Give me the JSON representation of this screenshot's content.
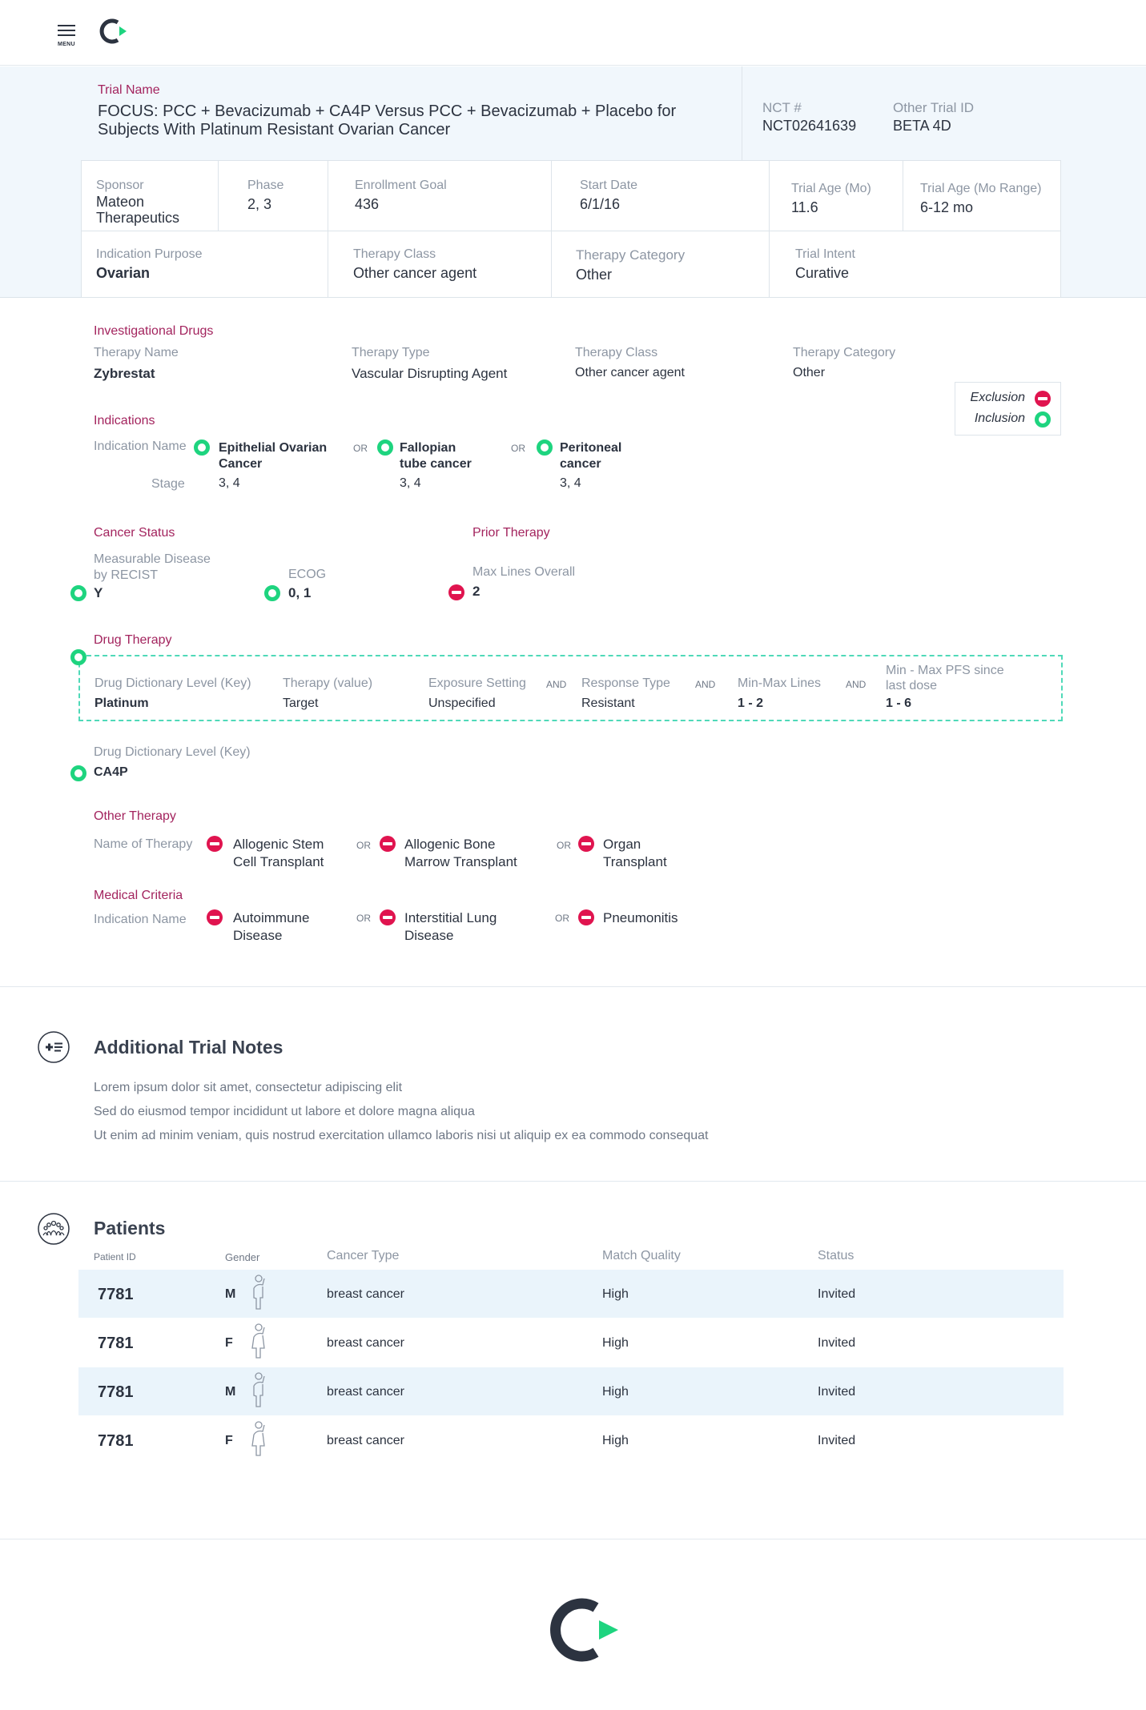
{
  "header": {
    "menu_label": "MENU"
  },
  "trial": {
    "name_label": "Trial Name",
    "name": "FOCUS: PCC + Bevacizumab + CA4P Versus PCC + Bevacizumab + Placebo for Subjects With Platinum Resistant Ovarian Cancer",
    "nct_label": "NCT #",
    "nct": "NCT02641639",
    "other_id_label": "Other Trial ID",
    "other_id": "BETA 4D",
    "sponsor_label": "Sponsor",
    "sponsor": "Mateon Therapeutics",
    "phase_label": "Phase",
    "phase": "2, 3",
    "enroll_label": "Enrollment Goal",
    "enroll": "436",
    "start_label": "Start Date",
    "start": "6/1/16",
    "age_label": "Trial Age (Mo)",
    "age": "11.6",
    "age_range_label": "Trial Age (Mo Range)",
    "age_range": "6-12 mo",
    "indication_label": "Indication Purpose",
    "indication": "Ovarian",
    "therapy_class_label": "Therapy Class",
    "therapy_class": "Other cancer agent",
    "therapy_cat_label": "Therapy Category",
    "therapy_cat": "Other",
    "intent_label": "Trial Intent",
    "intent": "Curative"
  },
  "legend": {
    "exclusion": "Exclusion",
    "inclusion": "Inclusion"
  },
  "investigational": {
    "title": "Investigational Drugs",
    "name_label": "Therapy Name",
    "name": "Zybrestat",
    "type_label": "Therapy Type",
    "type": "Vascular Disrupting Agent",
    "class_label": "Therapy Class",
    "class": "Other cancer agent",
    "cat_label": "Therapy Category",
    "cat": "Other"
  },
  "indications": {
    "title": "Indications",
    "name_label": "Indication Name",
    "stage_label": "Stage",
    "op": "OR",
    "items": [
      {
        "line1": "Epithelial Ovarian",
        "line2": "Cancer",
        "stage": "3, 4"
      },
      {
        "line1": "Fallopian",
        "line2": "tube cancer",
        "stage": "3, 4"
      },
      {
        "line1": "Peritoneal",
        "line2": "cancer",
        "stage": "3, 4"
      }
    ]
  },
  "cancer_status": {
    "title": "Cancer Status",
    "measurable_label1": "Measurable Disease",
    "measurable_label2": "by RECIST",
    "measurable": "Y",
    "ecog_label": "ECOG",
    "ecog": "0, 1"
  },
  "prior_therapy": {
    "title": "Prior Therapy",
    "max_lines_label": "Max Lines Overall",
    "max_lines": "2"
  },
  "drug_therapy": {
    "title": "Drug Therapy",
    "level_label": "Drug Dictionary Level (Key)",
    "level": "Platinum",
    "value_label": "Therapy (value)",
    "value": "Target",
    "exposure_label": "Exposure Setting",
    "exposure": "Unspecified",
    "op": "AND",
    "response_label": "Response Type",
    "response": "Resistant",
    "lines_label": "Min-Max Lines",
    "lines": "1 - 2",
    "pfs_label1": "Min - Max PFS since",
    "pfs_label2": "last dose",
    "pfs": "1 - 6"
  },
  "drug_dict": {
    "label": "Drug Dictionary Level (Key)",
    "value": "CA4P"
  },
  "other_therapy": {
    "title": "Other Therapy",
    "name_label": "Name of Therapy",
    "op": "OR",
    "items": [
      {
        "line1": "Allogenic Stem",
        "line2": "Cell Transplant"
      },
      {
        "line1": "Allogenic Bone",
        "line2": "Marrow Transplant"
      },
      {
        "line1": "Organ",
        "line2": "Transplant"
      }
    ]
  },
  "medical": {
    "title": "Medical Criteria",
    "name_label": "Indication Name",
    "op": "OR",
    "items": [
      {
        "line1": "Autoimmune",
        "line2": "Disease"
      },
      {
        "line1": "Interstitial Lung",
        "line2": "Disease"
      },
      {
        "line1": "Pneumonitis",
        "line2": ""
      }
    ]
  },
  "notes": {
    "title": "Additional Trial Notes",
    "lines": [
      "Lorem ipsum dolor sit amet, consectetur adipiscing elit",
      "Sed do eiusmod tempor incididunt ut labore et dolore magna aliqua",
      "Ut enim ad minim veniam, quis nostrud exercitation ullamco laboris nisi ut aliquip ex ea commodo consequat"
    ]
  },
  "patients": {
    "title": "Patients",
    "headers": {
      "id": "Patient ID",
      "gender": "Gender",
      "cancer": "Cancer Type",
      "match": "Match Quality",
      "status": "Status"
    },
    "rows": [
      {
        "id": "7781",
        "gender": "M",
        "cancer": "breast cancer",
        "match": "High",
        "status": "Invited"
      },
      {
        "id": "7781",
        "gender": "F",
        "cancer": "breast cancer",
        "match": "High",
        "status": "Invited"
      },
      {
        "id": "7781",
        "gender": "M",
        "cancer": "breast cancer",
        "match": "High",
        "status": "Invited"
      },
      {
        "id": "7781",
        "gender": "F",
        "cancer": "breast cancer",
        "match": "High",
        "status": "Invited"
      }
    ]
  },
  "colors": {
    "inclusion": "#1ed47f",
    "exclusion": "#e0144f",
    "section": "#a3245e",
    "hero_bg": "#f1f7fc",
    "row_alt": "#eaf4fb"
  },
  "icons": [
    "menu-icon",
    "logo-icon",
    "notes-icon",
    "patients-icon",
    "person-icon"
  ]
}
